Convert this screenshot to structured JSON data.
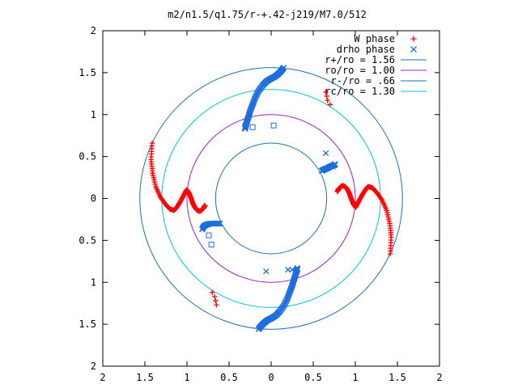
{
  "chart_data": {
    "type": "scatter",
    "title": "m2/n1.5/q1.75/r-+.42-j219/M7.0/512",
    "xlabel": "",
    "ylabel": "",
    "xlim": [
      -2,
      2
    ],
    "ylim": [
      -2,
      2
    ],
    "x_ticks": [
      -2,
      -1.5,
      -1,
      -0.5,
      0,
      0.5,
      1,
      1.5,
      2
    ],
    "y_ticks": [
      -2,
      -1.5,
      -1,
      -0.5,
      0,
      0.5,
      1,
      1.5,
      2
    ],
    "x_tick_labels": [
      "2",
      "1.5",
      "1",
      "0.5",
      "0",
      "0.5",
      "1",
      "1.5",
      "2"
    ],
    "y_tick_labels": [
      "2",
      "1.5",
      "1",
      "0.5",
      "0",
      "0.5",
      "1",
      "1.5",
      "2"
    ],
    "grid": false,
    "legend_position": "top-right",
    "series": [
      {
        "name": "W phase",
        "marker": "+",
        "color": "#ff0000",
        "arms": [
          {
            "r": [
              1.56,
              1.5,
              1.44,
              1.38,
              1.32,
              1.26,
              1.21,
              1.16,
              1.12,
              1.08,
              1.04,
              1.01,
              0.98,
              0.95,
              0.93,
              0.91,
              0.89,
              0.87,
              0.85,
              0.83,
              0.81,
              0.8,
              0.79
            ],
            "theta_deg": [
              -25,
              -18,
              -12,
              -6,
              -1,
              3,
              6,
              7,
              5,
              2,
              -2,
              -6,
              -4,
              0,
              4,
              7,
              9,
              10,
              10,
              9,
              8,
              7,
              6
            ],
            "extra": [
              [
                0.65,
                1.27
              ],
              [
                0.66,
                1.22
              ],
              [
                0.67,
                1.17
              ],
              [
                0.7,
                1.12
              ]
            ]
          },
          {
            "rot": 180
          }
        ]
      },
      {
        "name": "drho phase",
        "marker": "x",
        "color": "#1e6edc",
        "arms": [
          {
            "x": [
              0.15,
              0.12,
              0.08,
              0.04,
              0.0,
              -0.05,
              -0.1,
              -0.15,
              -0.19,
              -0.22,
              -0.25,
              -0.27,
              -0.29,
              -0.3,
              -0.31,
              -0.31
            ],
            "y": [
              1.56,
              1.52,
              1.48,
              1.45,
              1.43,
              1.4,
              1.35,
              1.28,
              1.2,
              1.12,
              1.04,
              0.97,
              0.91,
              0.87,
              0.85,
              0.83
            ]
          },
          {
            "rot": 180
          },
          {
            "x": [
              0.6,
              0.62,
              0.64,
              0.67,
              0.7,
              0.73,
              0.75,
              0.76
            ],
            "y": [
              0.33,
              0.34,
              0.35,
              0.36,
              0.38,
              0.39,
              0.4,
              0.41
            ]
          },
          {
            "x": [
              -0.82,
              -0.8,
              -0.76,
              -0.72,
              -0.68,
              -0.64,
              -0.61
            ],
            "y": [
              -0.37,
              -0.33,
              -0.31,
              -0.3,
              -0.3,
              -0.3,
              -0.3
            ]
          }
        ],
        "scatter_points": [
          [
            0.65,
            0.54
          ],
          [
            0.73,
            0.38
          ],
          [
            0.76,
            0.4
          ],
          [
            -0.06,
            -0.87
          ],
          [
            0.2,
            -0.85
          ],
          [
            0.25,
            -0.85
          ]
        ],
        "square_points": [
          [
            -0.22,
            0.85
          ],
          [
            0.03,
            0.87
          ],
          [
            -0.71,
            -0.55
          ],
          [
            -0.74,
            -0.44
          ]
        ]
      }
    ],
    "circles": [
      {
        "name": "r+/ro = 1.56",
        "radius": 1.56,
        "color": "#1f6fb4"
      },
      {
        "name": "ro/ro = 1.00",
        "radius": 1.0,
        "color": "#a020c0"
      },
      {
        "name": "r-/ro = .66",
        "radius": 0.66,
        "color": "#1f6fb4"
      },
      {
        "name": "rc/ro = 1.30",
        "radius": 1.3,
        "color": "#00c8d0"
      }
    ]
  }
}
